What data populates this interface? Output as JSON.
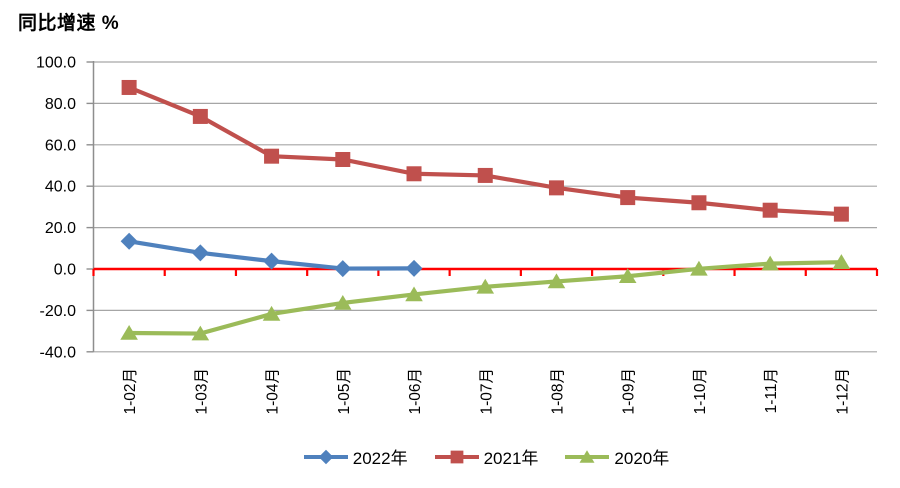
{
  "title": "同比增速 %",
  "chart_data": {
    "type": "line",
    "title": "同比增速 %",
    "categories": [
      "1-02月",
      "1-03月",
      "1-04月",
      "1-05月",
      "1-06月",
      "1-07月",
      "1-08月",
      "1-09月",
      "1-10月",
      "1-11月",
      "1-12月"
    ],
    "y_tick_labels": [
      "100.0",
      "80.0",
      "60.0",
      "40.0",
      "20.0",
      "0.0",
      "-20.0",
      "-40.0"
    ],
    "y_ticks": [
      100,
      80,
      60,
      40,
      20,
      0,
      -20,
      -40
    ],
    "ylim": [
      -40,
      100
    ],
    "grid": true,
    "legend_position": "bottom",
    "series": [
      {
        "name": "2022年",
        "marker": "diamond",
        "color": "#4F81BD",
        "values": [
          13.4,
          7.8,
          3.8,
          0.2,
          0.3
        ]
      },
      {
        "name": "2021年",
        "marker": "square",
        "color": "#C0504D",
        "values": [
          87.7,
          73.7,
          54.5,
          52.9,
          46.0,
          45.2,
          39.2,
          34.5,
          32.0,
          28.4,
          26.5
        ]
      },
      {
        "name": "2020年",
        "marker": "triangle",
        "color": "#9BBB59",
        "values": [
          -30.9,
          -31.2,
          -21.7,
          -16.4,
          -12.3,
          -8.6,
          -6.0,
          -3.5,
          0.1,
          2.6,
          3.3
        ]
      }
    ],
    "zero_axis_color": "#FF0000",
    "gridline_color": "#A6A6A6",
    "axis_line_color": "#8E8E8E",
    "text_color": "#000000"
  }
}
